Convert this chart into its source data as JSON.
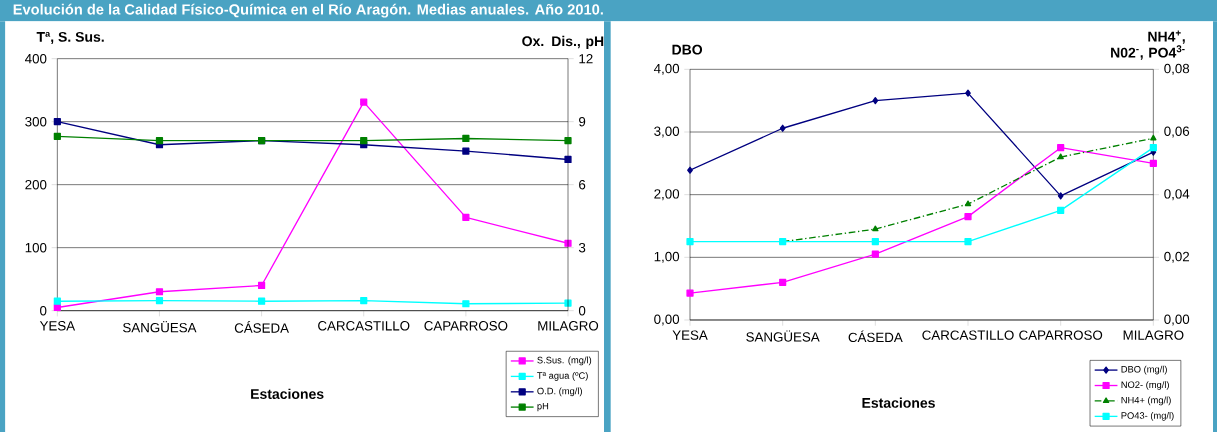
{
  "chart_data": [
    {
      "type": "line",
      "title": "Evolución de la Calidad Físico-Química en el Río Aragón. Medias anuales. Año 2010.",
      "xlabel": "Estaciones",
      "ylabel": "Tª, S. Sus.",
      "y2label": "Ox. Dis., pH",
      "categories": [
        "YESA",
        "SANGÜESA",
        "CÁSEDA",
        "CARCASTILLO",
        "CAPARROSO",
        "MILAGRO"
      ],
      "ylim": [
        0,
        400
      ],
      "yticks": [
        0,
        100,
        200,
        300,
        400
      ],
      "y2lim": [
        0,
        12
      ],
      "y2ticks": [
        0,
        3,
        6,
        9,
        12
      ],
      "grid": "y",
      "legend": "bottom right",
      "marker": "square",
      "line_style": "solid",
      "series": [
        {
          "name": "S.Sus. (mg/l)",
          "color": "#ff00ff",
          "values": [
            5,
            30,
            40,
            331,
            148,
            107
          ]
        },
        {
          "name": "Tª agua (ºC)",
          "color": "#00ffff",
          "values": [
            15,
            16,
            15,
            16,
            11,
            12
          ]
        },
        {
          "name": "O.D. (mg/l)",
          "color": "#000080",
          "axis": "y2",
          "values": [
            9.0,
            7.9,
            8.1,
            7.9,
            7.6,
            7.2
          ]
        },
        {
          "name": "pH",
          "color": "#008000",
          "axis": "y2",
          "values": [
            8.3,
            8.1,
            8.1,
            8.1,
            8.2,
            8.1
          ]
        }
      ]
    },
    {
      "type": "line",
      "xlabel": "Estaciones",
      "ylabel": "DBO",
      "y2label": "NH4$^{+}$, N02$^{-}$, PO4$^{3-}$",
      "categories": [
        "YESA",
        "SANGÜESA",
        "CÁSEDA",
        "CARCASTILLO",
        "CAPARROSO",
        "MILAGRO"
      ],
      "ylim": [
        0,
        4
      ],
      "yticks": [
        {
          "value": 0,
          "label": "0,00"
        },
        {
          "value": 1,
          "label": "1,00"
        },
        {
          "value": 2,
          "label": "2,00"
        },
        {
          "value": 3,
          "label": "3,00"
        },
        {
          "value": 4,
          "label": "4,00"
        }
      ],
      "y2lim": [
        0,
        0.08
      ],
      "y2ticks": [
        {
          "value": 0,
          "label": "0,00"
        },
        {
          "value": 0.02,
          "label": "0,02"
        },
        {
          "value": 0.04,
          "label": "0,04"
        },
        {
          "value": 0.06,
          "label": "0,06"
        },
        {
          "value": 0.08,
          "label": "0,08"
        }
      ],
      "grid": "y",
      "legend": "bottom right",
      "marker": "square",
      "line_style": "solid",
      "series": [
        {
          "name": "DBO (mg/l)",
          "color": "#000080",
          "marker": "diamond",
          "values": [
            2.39,
            3.06,
            3.5,
            3.62,
            1.98,
            2.68
          ]
        },
        {
          "name": "NO2- (mg/l)",
          "color": "#ff00ff",
          "axis": "y2",
          "values": [
            0.0086,
            0.012,
            0.021,
            0.033,
            0.055,
            0.05
          ]
        },
        {
          "name": "NH4+ (mg/l)",
          "color": "#008000",
          "axis": "y2",
          "marker": "triangle",
          "line_style": "dashed",
          "values": [
            null,
            0.025,
            0.029,
            0.037,
            0.052,
            0.058
          ]
        },
        {
          "name": "PO43- (mg/l)",
          "color": "#00ffff",
          "axis": "y2",
          "values": [
            0.025,
            0.025,
            0.025,
            0.025,
            0.035,
            0.055
          ]
        }
      ]
    }
  ]
}
